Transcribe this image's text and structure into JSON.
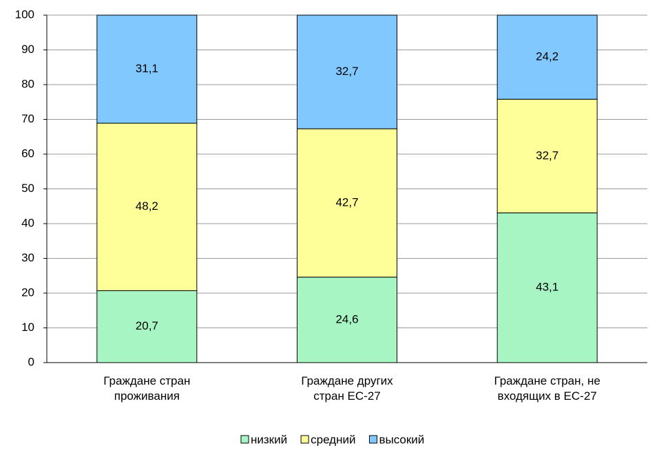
{
  "chart_data": {
    "type": "stacked_bar",
    "categories": [
      "Граждане стран проживания",
      "Граждане других стран ЕС-27",
      "Граждане стран, не входящих в ЕС-27"
    ],
    "series": [
      {
        "name": "низкий",
        "color": "#a8f5c4",
        "values": [
          20.7,
          24.6,
          43.1
        ],
        "value_labels": [
          "20,7",
          "24,6",
          "43,1"
        ]
      },
      {
        "name": "средний",
        "color": "#ffff99",
        "values": [
          48.2,
          42.7,
          32.7
        ],
        "value_labels": [
          "48,2",
          "42,7",
          "32,7"
        ]
      },
      {
        "name": "высокий",
        "color": "#80c8ff",
        "values": [
          31.1,
          32.7,
          24.2
        ],
        "value_labels": [
          "31,1",
          "32,7",
          "24,2"
        ]
      }
    ],
    "ylim": [
      0,
      100
    ],
    "yticks": [
      0,
      10,
      20,
      30,
      40,
      50,
      60,
      70,
      80,
      90,
      100
    ],
    "grid": true,
    "legend": "bottom"
  }
}
